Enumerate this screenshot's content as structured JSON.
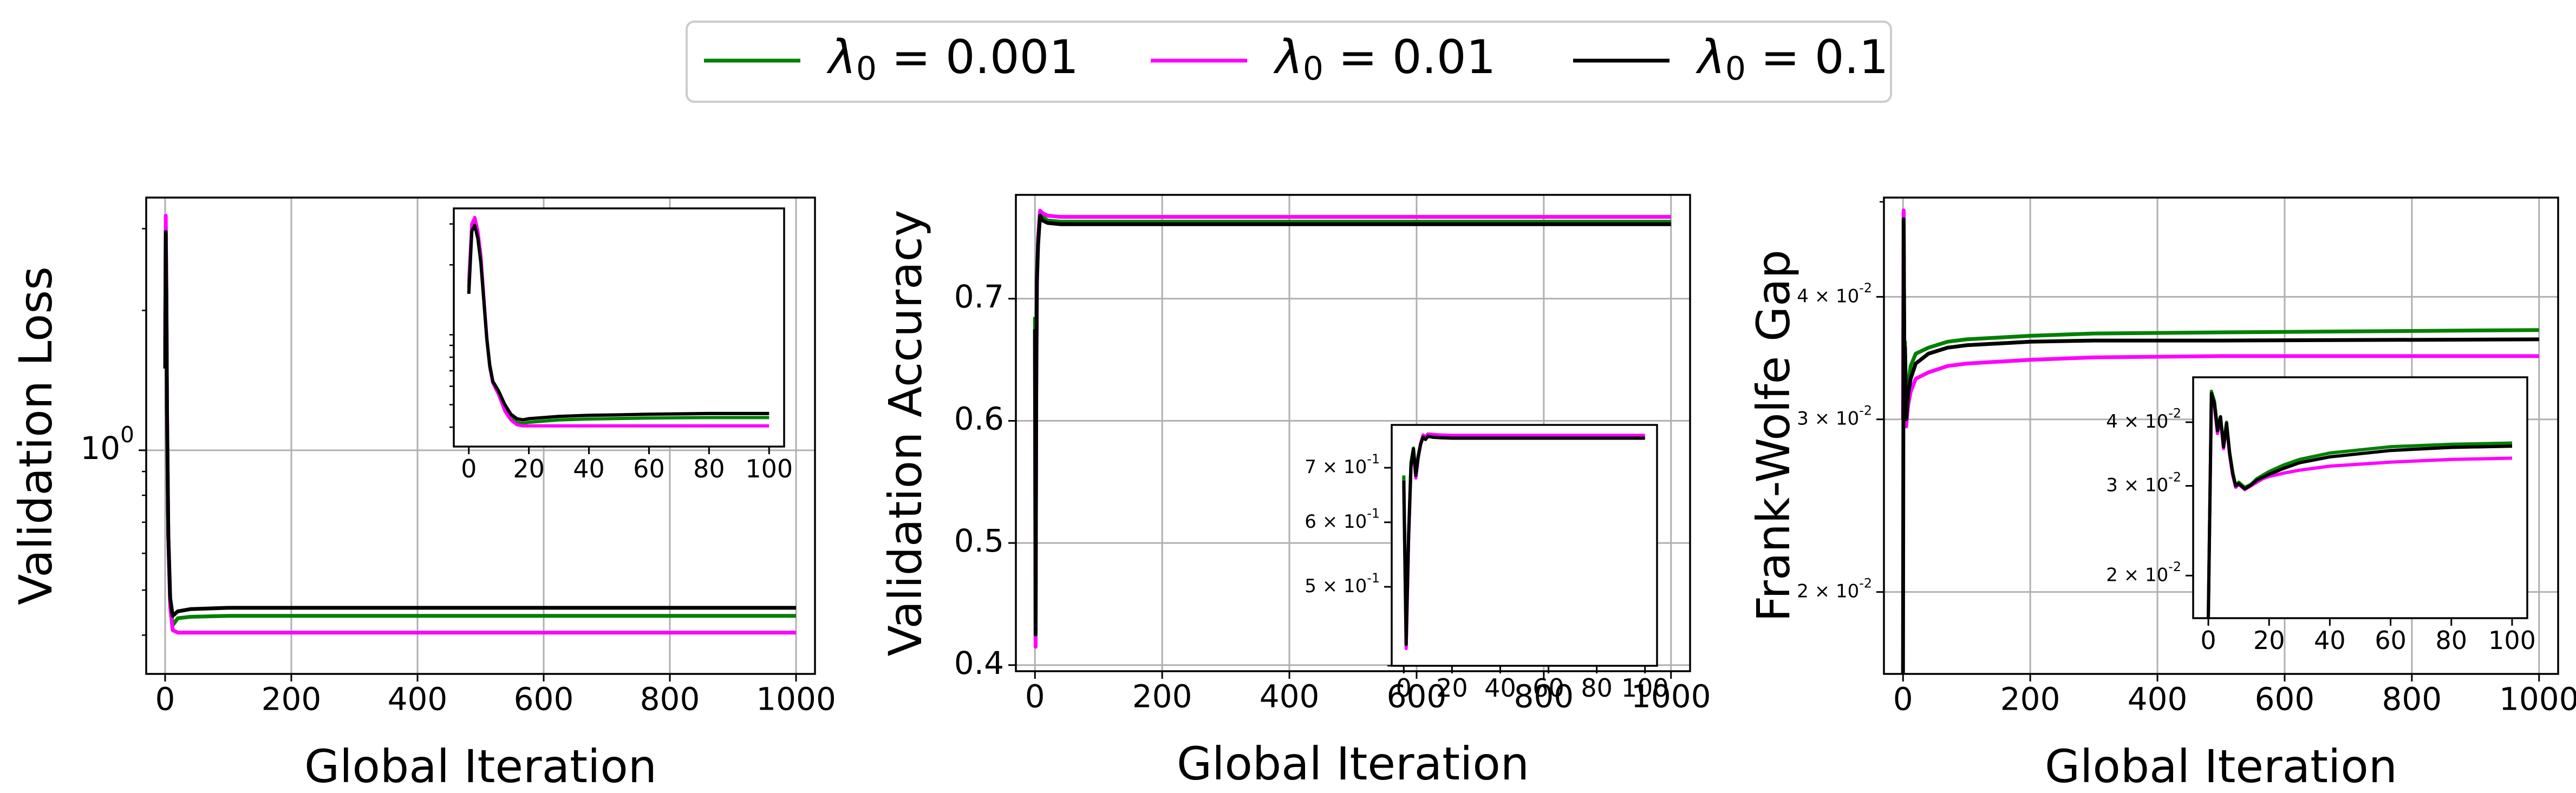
{
  "colors": {
    "green": "#008000",
    "magenta": "#ff00ff",
    "black": "#000000",
    "grid": "#b0b0b0"
  },
  "legend": {
    "placement": "top-center",
    "entries": [
      {
        "label": "λ0 = 0.001",
        "color": "#008000"
      },
      {
        "label": "λ0 = 0.01",
        "color": "#ff00ff"
      },
      {
        "label": "λ0 = 0.1",
        "color": "#000000"
      }
    ]
  },
  "chart_data": [
    {
      "type": "line",
      "xlabel": "Global Iteration",
      "ylabel": "Validation Loss",
      "yscale": "log",
      "grid": true,
      "xlim": [
        -30,
        1030
      ],
      "ylim": [
        0.33,
        3.5
      ],
      "xticks": [
        0,
        200,
        400,
        600,
        800,
        1000
      ],
      "xtick_labels": [
        "0",
        "200",
        "400",
        "600",
        "800",
        "1000"
      ],
      "yticks": [
        1
      ],
      "ytick_labels": [
        "10^0"
      ],
      "series": [
        {
          "name": "λ0 = 0.001",
          "color": "#008000",
          "x": [
            0,
            1,
            2,
            3,
            5,
            8,
            12,
            20,
            40,
            100,
            1000
          ],
          "y": [
            1.6,
            3.05,
            2.1,
            1.2,
            0.65,
            0.47,
            0.42,
            0.435,
            0.438,
            0.44,
            0.44
          ]
        },
        {
          "name": "λ0 = 0.01",
          "color": "#ff00ff",
          "x": [
            0,
            1,
            2,
            3,
            5,
            8,
            12,
            20,
            40,
            100,
            1000
          ],
          "y": [
            1.7,
            3.2,
            2.2,
            1.25,
            0.65,
            0.46,
            0.41,
            0.405,
            0.405,
            0.405,
            0.405
          ]
        },
        {
          "name": "λ0 = 0.1",
          "color": "#000000",
          "x": [
            0,
            1,
            2,
            3,
            5,
            8,
            12,
            20,
            40,
            100,
            1000
          ],
          "y": [
            1.5,
            2.95,
            2.05,
            1.2,
            0.66,
            0.48,
            0.44,
            0.45,
            0.455,
            0.458,
            0.458
          ]
        }
      ],
      "inset": {
        "xlim": [
          -5,
          105
        ],
        "ylim": [
          0.33,
          3.5
        ],
        "yscale": "log",
        "xticks": [
          0,
          20,
          40,
          60,
          80,
          100
        ],
        "xtick_labels": [
          "0",
          "20",
          "40",
          "60",
          "80",
          "100"
        ],
        "yticks": [],
        "ytick_labels": [],
        "series": [
          {
            "color": "#008000",
            "x": [
              0,
              1,
              2,
              3,
              4,
              5,
              6,
              7,
              8,
              10,
              12,
              14,
              16,
              18,
              20,
              25,
              30,
              40,
              50,
              60,
              80,
              100
            ],
            "y": [
              1.6,
              2.9,
              3.05,
              2.7,
              2.1,
              1.4,
              0.95,
              0.72,
              0.62,
              0.56,
              0.48,
              0.44,
              0.42,
              0.415,
              0.42,
              0.425,
              0.43,
              0.434,
              0.436,
              0.438,
              0.44,
              0.44
            ]
          },
          {
            "color": "#ff00ff",
            "x": [
              0,
              1,
              2,
              3,
              4,
              5,
              6,
              7,
              8,
              10,
              12,
              14,
              16,
              18,
              20,
              25,
              30,
              40,
              50,
              60,
              80,
              100
            ],
            "y": [
              1.7,
              3.0,
              3.2,
              2.8,
              2.2,
              1.45,
              0.97,
              0.73,
              0.62,
              0.55,
              0.47,
              0.43,
              0.41,
              0.405,
              0.405,
              0.405,
              0.405,
              0.405,
              0.405,
              0.405,
              0.405,
              0.405
            ]
          },
          {
            "color": "#000000",
            "x": [
              0,
              1,
              2,
              3,
              4,
              5,
              6,
              7,
              8,
              10,
              12,
              14,
              16,
              18,
              20,
              25,
              30,
              40,
              50,
              60,
              80,
              100
            ],
            "y": [
              1.5,
              2.8,
              2.95,
              2.6,
              2.05,
              1.4,
              0.96,
              0.74,
              0.63,
              0.57,
              0.5,
              0.455,
              0.435,
              0.43,
              0.435,
              0.44,
              0.445,
              0.45,
              0.452,
              0.455,
              0.458,
              0.458
            ]
          }
        ]
      }
    },
    {
      "type": "line",
      "xlabel": "Global Iteration",
      "ylabel": "Validation Accuracy",
      "yscale": "linear",
      "grid": true,
      "xlim": [
        -30,
        1030
      ],
      "ylim": [
        0.395,
        0.785
      ],
      "xticks": [
        0,
        200,
        400,
        600,
        800,
        1000
      ],
      "xtick_labels": [
        "0",
        "200",
        "400",
        "600",
        "800",
        "1000"
      ],
      "yticks": [
        0.4,
        0.5,
        0.6,
        0.7
      ],
      "ytick_labels": [
        "0.4",
        "0.5",
        "0.6",
        "0.7"
      ],
      "series": [
        {
          "name": "λ0 = 0.001",
          "color": "#008000",
          "x": [
            0,
            1,
            2,
            3,
            5,
            8,
            12,
            20,
            40,
            100,
            1000
          ],
          "y": [
            0.685,
            0.42,
            0.64,
            0.72,
            0.75,
            0.77,
            0.767,
            0.764,
            0.763,
            0.763,
            0.763
          ]
        },
        {
          "name": "λ0 = 0.01",
          "color": "#ff00ff",
          "x": [
            0,
            1,
            2,
            3,
            5,
            8,
            12,
            20,
            40,
            100,
            1000
          ],
          "y": [
            0.665,
            0.415,
            0.62,
            0.71,
            0.75,
            0.772,
            0.77,
            0.768,
            0.767,
            0.767,
            0.767
          ]
        },
        {
          "name": "λ0 = 0.1",
          "color": "#000000",
          "x": [
            0,
            1,
            2,
            3,
            5,
            8,
            12,
            20,
            40,
            100,
            1000
          ],
          "y": [
            0.675,
            0.425,
            0.63,
            0.715,
            0.745,
            0.768,
            0.764,
            0.762,
            0.761,
            0.761,
            0.761
          ]
        }
      ],
      "inset": {
        "xlim": [
          -5,
          105
        ],
        "ylim": [
          0.4,
          0.79
        ],
        "yscale": "log",
        "xticks": [
          0,
          20,
          40,
          60,
          80,
          100
        ],
        "xtick_labels": [
          "0",
          "20",
          "40",
          "60",
          "80",
          "100"
        ],
        "yticks": [
          0.5,
          0.6,
          0.7
        ],
        "ytick_labels": [
          "5 × 10^-1",
          "6 × 10^-1",
          "7 × 10^-1"
        ],
        "series": [
          {
            "color": "#008000",
            "x": [
              0,
              1,
              2,
              3,
              4,
              5,
              6,
              7,
              8,
              9,
              10,
              12,
              15,
              20,
              30,
              50,
              100
            ],
            "y": [
              0.685,
              0.43,
              0.58,
              0.71,
              0.74,
              0.69,
              0.725,
              0.75,
              0.765,
              0.76,
              0.768,
              0.766,
              0.764,
              0.764,
              0.763,
              0.763,
              0.763
            ]
          },
          {
            "color": "#ff00ff",
            "x": [
              0,
              1,
              2,
              3,
              4,
              5,
              6,
              7,
              8,
              9,
              10,
              12,
              15,
              20,
              30,
              50,
              100
            ],
            "y": [
              0.665,
              0.42,
              0.57,
              0.7,
              0.735,
              0.68,
              0.72,
              0.75,
              0.768,
              0.764,
              0.77,
              0.769,
              0.768,
              0.767,
              0.767,
              0.767,
              0.767
            ]
          },
          {
            "color": "#000000",
            "x": [
              0,
              1,
              2,
              3,
              4,
              5,
              6,
              7,
              8,
              9,
              10,
              12,
              15,
              20,
              30,
              50,
              100
            ],
            "y": [
              0.675,
              0.425,
              0.575,
              0.705,
              0.738,
              0.685,
              0.722,
              0.748,
              0.763,
              0.758,
              0.765,
              0.763,
              0.762,
              0.761,
              0.761,
              0.761,
              0.761
            ]
          }
        ]
      }
    },
    {
      "type": "line",
      "xlabel": "Global Iteration",
      "ylabel": "Frank-Wolfe Gap",
      "yscale": "log",
      "grid": true,
      "xlim": [
        -30,
        1030
      ],
      "ylim": [
        0.0165,
        0.0505
      ],
      "xticks": [
        0,
        200,
        400,
        600,
        800,
        1000
      ],
      "xtick_labels": [
        "0",
        "200",
        "400",
        "600",
        "800",
        "1000"
      ],
      "yticks": [
        0.02,
        0.03,
        0.04
      ],
      "ytick_labels": [
        "2 × 10^-2",
        "3 × 10^-2",
        "4 × 10^-2"
      ],
      "series": [
        {
          "name": "λ0 = 0.001",
          "color": "#008000",
          "x": [
            0,
            1,
            2,
            3,
            5,
            8,
            12,
            20,
            40,
            70,
            100,
            200,
            300,
            500,
            1000
          ],
          "y": [
            0.03,
            0.049,
            0.035,
            0.036,
            0.031,
            0.0325,
            0.034,
            0.035,
            0.0355,
            0.036,
            0.0362,
            0.0365,
            0.0367,
            0.0368,
            0.037
          ]
        },
        {
          "name": "λ0 = 0.01",
          "color": "#ff00ff",
          "x": [
            0,
            1,
            2,
            3,
            5,
            8,
            12,
            20,
            40,
            70,
            100,
            200,
            300,
            500,
            1000
          ],
          "y": [
            0.03,
            0.049,
            0.034,
            0.034,
            0.0295,
            0.031,
            0.032,
            0.033,
            0.0335,
            0.034,
            0.0342,
            0.0345,
            0.0347,
            0.0348,
            0.0348
          ]
        },
        {
          "name": "λ0 = 0.1",
          "color": "#000000",
          "x": [
            0,
            1,
            2,
            3,
            5,
            8,
            12,
            20,
            40,
            70,
            100,
            200,
            300,
            500,
            1000
          ],
          "y": [
            0.0165,
            0.048,
            0.035,
            0.0355,
            0.03,
            0.0318,
            0.033,
            0.0342,
            0.035,
            0.0355,
            0.0357,
            0.036,
            0.0361,
            0.0361,
            0.0362
          ]
        }
      ],
      "inset": {
        "xlim": [
          -5,
          105
        ],
        "ylim": [
          0.0165,
          0.049
        ],
        "yscale": "log",
        "xticks": [
          0,
          20,
          40,
          60,
          80,
          100
        ],
        "xtick_labels": [
          "0",
          "20",
          "40",
          "60",
          "80",
          "100"
        ],
        "yticks": [
          0.02,
          0.03,
          0.04
        ],
        "ytick_labels": [
          "2 × 10^-2",
          "3 × 10^-2",
          "4 × 10^-2"
        ],
        "series": [
          {
            "color": "#008000",
            "x": [
              0,
              1,
              2,
              3,
              4,
              5,
              6,
              7,
              8,
              9,
              10,
              12,
              14,
              16,
              18,
              20,
              25,
              30,
              40,
              60,
              80,
              100
            ],
            "y": [
              0.0165,
              0.046,
              0.044,
              0.039,
              0.041,
              0.036,
              0.04,
              0.035,
              0.032,
              0.03,
              0.0305,
              0.0298,
              0.0302,
              0.031,
              0.0315,
              0.032,
              0.033,
              0.0338,
              0.0348,
              0.0358,
              0.0362,
              0.0364
            ]
          },
          {
            "color": "#ff00ff",
            "x": [
              0,
              1,
              2,
              3,
              4,
              5,
              6,
              7,
              8,
              9,
              10,
              12,
              14,
              16,
              18,
              20,
              25,
              30,
              40,
              60,
              80,
              100
            ],
            "y": [
              0.0165,
              0.045,
              0.043,
              0.038,
              0.0405,
              0.0355,
              0.0395,
              0.0345,
              0.0315,
              0.0298,
              0.0302,
              0.0295,
              0.03,
              0.0305,
              0.031,
              0.0313,
              0.0318,
              0.0322,
              0.0328,
              0.0334,
              0.0338,
              0.034
            ]
          },
          {
            "color": "#000000",
            "x": [
              0,
              1,
              2,
              3,
              4,
              5,
              6,
              7,
              8,
              9,
              10,
              12,
              14,
              16,
              18,
              20,
              25,
              30,
              40,
              60,
              80,
              100
            ],
            "y": [
              0.0165,
              0.0455,
              0.0435,
              0.0385,
              0.041,
              0.0358,
              0.0398,
              0.0348,
              0.0318,
              0.03,
              0.0303,
              0.0296,
              0.0301,
              0.0308,
              0.0312,
              0.0316,
              0.0325,
              0.0333,
              0.0342,
              0.0352,
              0.0357,
              0.0359
            ]
          }
        ]
      }
    }
  ]
}
